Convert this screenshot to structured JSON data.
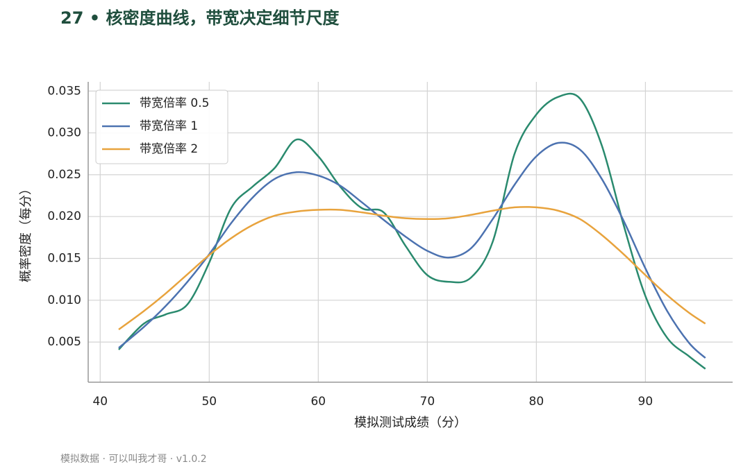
{
  "chart_data": {
    "type": "line",
    "title": "27 • 核密度曲线，带宽决定细节尺度",
    "footer": "模拟数据 · 可以叫我才哥 · v1.0.2",
    "xlabel": "模拟测试成绩（分）",
    "ylabel": "概率密度（每分）",
    "x": [
      41.7,
      44,
      46,
      48,
      50,
      52,
      54,
      56,
      58,
      60,
      62,
      64,
      66,
      68,
      70,
      72,
      74,
      76,
      78,
      80,
      82,
      84,
      86,
      88,
      90,
      92,
      94,
      95.5
    ],
    "series": [
      {
        "name": "带宽倍率 0.5",
        "color": "#2a8a6e",
        "values": [
          0.0041,
          0.0072,
          0.0083,
          0.0095,
          0.0145,
          0.021,
          0.0236,
          0.0258,
          0.0292,
          0.0272,
          0.0236,
          0.021,
          0.0205,
          0.0165,
          0.013,
          0.0122,
          0.0127,
          0.017,
          0.0275,
          0.0322,
          0.0343,
          0.0341,
          0.0285,
          0.019,
          0.0105,
          0.0055,
          0.0033,
          0.0018
        ]
      },
      {
        "name": "带宽倍率 1",
        "color": "#4c72b0",
        "values": [
          0.0043,
          0.0068,
          0.0093,
          0.0122,
          0.0155,
          0.0192,
          0.0223,
          0.0245,
          0.0253,
          0.0249,
          0.0237,
          0.0217,
          0.0196,
          0.0176,
          0.0159,
          0.0151,
          0.0162,
          0.0197,
          0.0238,
          0.0272,
          0.0288,
          0.028,
          0.0245,
          0.0195,
          0.0138,
          0.0087,
          0.0049,
          0.0031
        ]
      },
      {
        "name": "带宽倍率 2",
        "color": "#e8a33d",
        "values": [
          0.0065,
          0.0087,
          0.0108,
          0.0131,
          0.0154,
          0.0174,
          0.019,
          0.0201,
          0.0206,
          0.0208,
          0.0208,
          0.0205,
          0.0201,
          0.0198,
          0.0197,
          0.0198,
          0.0202,
          0.0207,
          0.0211,
          0.0211,
          0.0207,
          0.0197,
          0.0178,
          0.0155,
          0.013,
          0.0106,
          0.0085,
          0.0072
        ]
      }
    ],
    "xlim": [
      38.9,
      98.0
    ],
    "ylim": [
      0.0002,
      0.0361
    ],
    "xticks": [
      40,
      50,
      60,
      70,
      80,
      90
    ],
    "yticks": [
      0.005,
      {
        "value": 0.01,
        "label": "0.010"
      },
      0.015,
      {
        "value": 0.02,
        "label": "0.020"
      },
      0.025,
      {
        "value": 0.03,
        "label": "0.030"
      },
      0.035
    ],
    "grid": true,
    "legend": "upper left"
  }
}
